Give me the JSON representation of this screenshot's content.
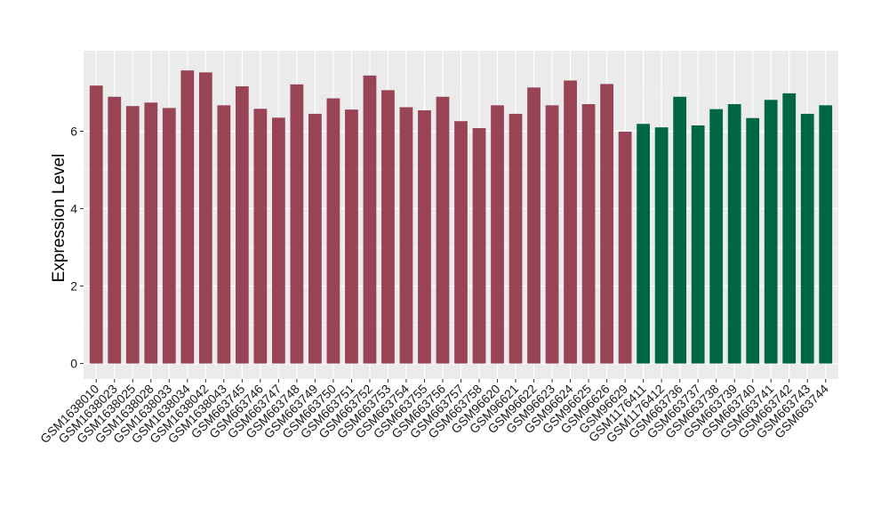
{
  "chart_data": {
    "type": "bar",
    "title": "",
    "xlabel": "",
    "ylabel": "Expression Level",
    "ylim": [
      0,
      8
    ],
    "yticks": [
      0,
      2,
      4,
      6
    ],
    "grid": true,
    "legend": "none",
    "colors": {
      "group1": "#994455",
      "group2": "#006644",
      "panel_bg": "#ebebeb",
      "grid": "#ffffff"
    },
    "categories": [
      "GSM1638010",
      "GSM1638023",
      "GSM1638025",
      "GSM1638028",
      "GSM1638033",
      "GSM1638034",
      "GSM1638042",
      "GSM1638043",
      "GSM663745",
      "GSM663746",
      "GSM663747",
      "GSM663748",
      "GSM663749",
      "GSM663750",
      "GSM663751",
      "GSM663752",
      "GSM663753",
      "GSM663754",
      "GSM663755",
      "GSM663756",
      "GSM663757",
      "GSM663758",
      "GSM96620",
      "GSM96621",
      "GSM96622",
      "GSM96623",
      "GSM96624",
      "GSM96625",
      "GSM96626",
      "GSM96629",
      "GSM1176411",
      "GSM1176412",
      "GSM663736",
      "GSM663737",
      "GSM663738",
      "GSM663739",
      "GSM663740",
      "GSM663741",
      "GSM663742",
      "GSM663743",
      "GSM663744"
    ],
    "values": [
      7.18,
      6.89,
      6.65,
      6.74,
      6.6,
      7.57,
      7.52,
      6.67,
      7.16,
      6.58,
      6.35,
      7.21,
      6.45,
      6.85,
      6.56,
      7.44,
      7.06,
      6.62,
      6.54,
      6.89,
      6.26,
      6.08,
      6.67,
      6.45,
      7.13,
      6.67,
      7.31,
      6.7,
      7.22,
      5.99,
      6.19,
      6.1,
      6.89,
      6.15,
      6.57,
      6.7,
      6.34,
      6.81,
      6.98,
      6.45,
      6.67
    ],
    "groups": [
      1,
      1,
      1,
      1,
      1,
      1,
      1,
      1,
      1,
      1,
      1,
      1,
      1,
      1,
      1,
      1,
      1,
      1,
      1,
      1,
      1,
      1,
      1,
      1,
      1,
      1,
      1,
      1,
      1,
      1,
      2,
      2,
      2,
      2,
      2,
      2,
      2,
      2,
      2,
      2,
      2
    ]
  }
}
